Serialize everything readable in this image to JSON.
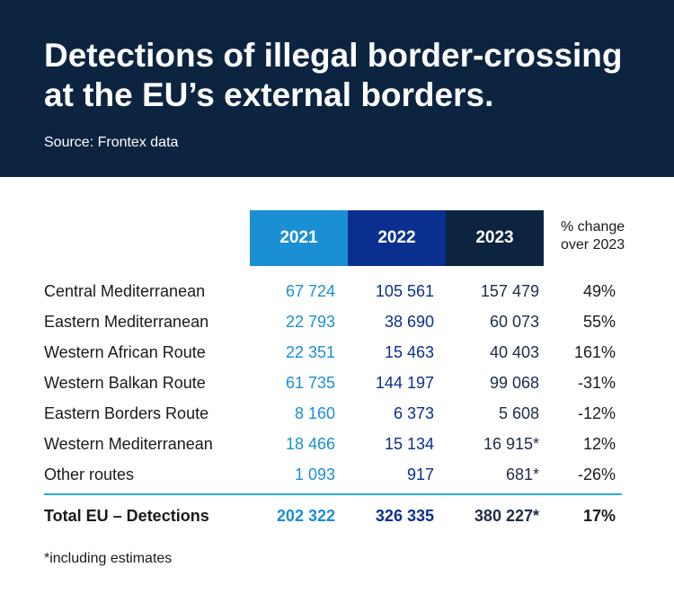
{
  "header": {
    "title_line1": "Detections of illegal border-crossing",
    "title_line2": "at the EU’s external borders.",
    "source": "Source: Frontex data"
  },
  "colors": {
    "header_bg": "#0c2440",
    "col_2021": "#1b8fd3",
    "col_2022": "#0b2f8f",
    "col_2023": "#0c2440",
    "divider": "#29a9e1"
  },
  "chart_data": {
    "type": "table",
    "title": "Detections of illegal border-crossing at the EU’s external borders.",
    "columns": [
      "2021",
      "2022",
      "2023"
    ],
    "change_header_line1": "% change",
    "change_header_line2": "over 2023",
    "rows": [
      {
        "label": "Central Mediterranean",
        "v2021": "67 724",
        "v2022": "105 561",
        "v2023": "157 479",
        "change": "49%"
      },
      {
        "label": "Eastern Mediterranean",
        "v2021": "22 793",
        "v2022": "38 690",
        "v2023": "60 073",
        "change": "55%"
      },
      {
        "label": "Western African Route",
        "v2021": "22 351",
        "v2022": "15 463",
        "v2023": "40 403",
        "change": "161%"
      },
      {
        "label": "Western Balkan Route",
        "v2021": "61 735",
        "v2022": "144 197",
        "v2023": "99 068",
        "change": "-31%"
      },
      {
        "label": "Eastern Borders Route",
        "v2021": "8 160",
        "v2022": "6 373",
        "v2023": "5 608",
        "change": "-12%"
      },
      {
        "label": "Western Mediterranean",
        "v2021": "18 466",
        "v2022": "15 134",
        "v2023": "16 915*",
        "change": "12%"
      },
      {
        "label": "Other routes",
        "v2021": "1 093",
        "v2022": "917",
        "v2023": "681*",
        "change": "-26%"
      }
    ],
    "total": {
      "label": "Total EU – Detections",
      "v2021": "202 322",
      "v2022": "326 335",
      "v2023": "380 227*",
      "change": "17%"
    }
  },
  "footnote": "*including estimates"
}
